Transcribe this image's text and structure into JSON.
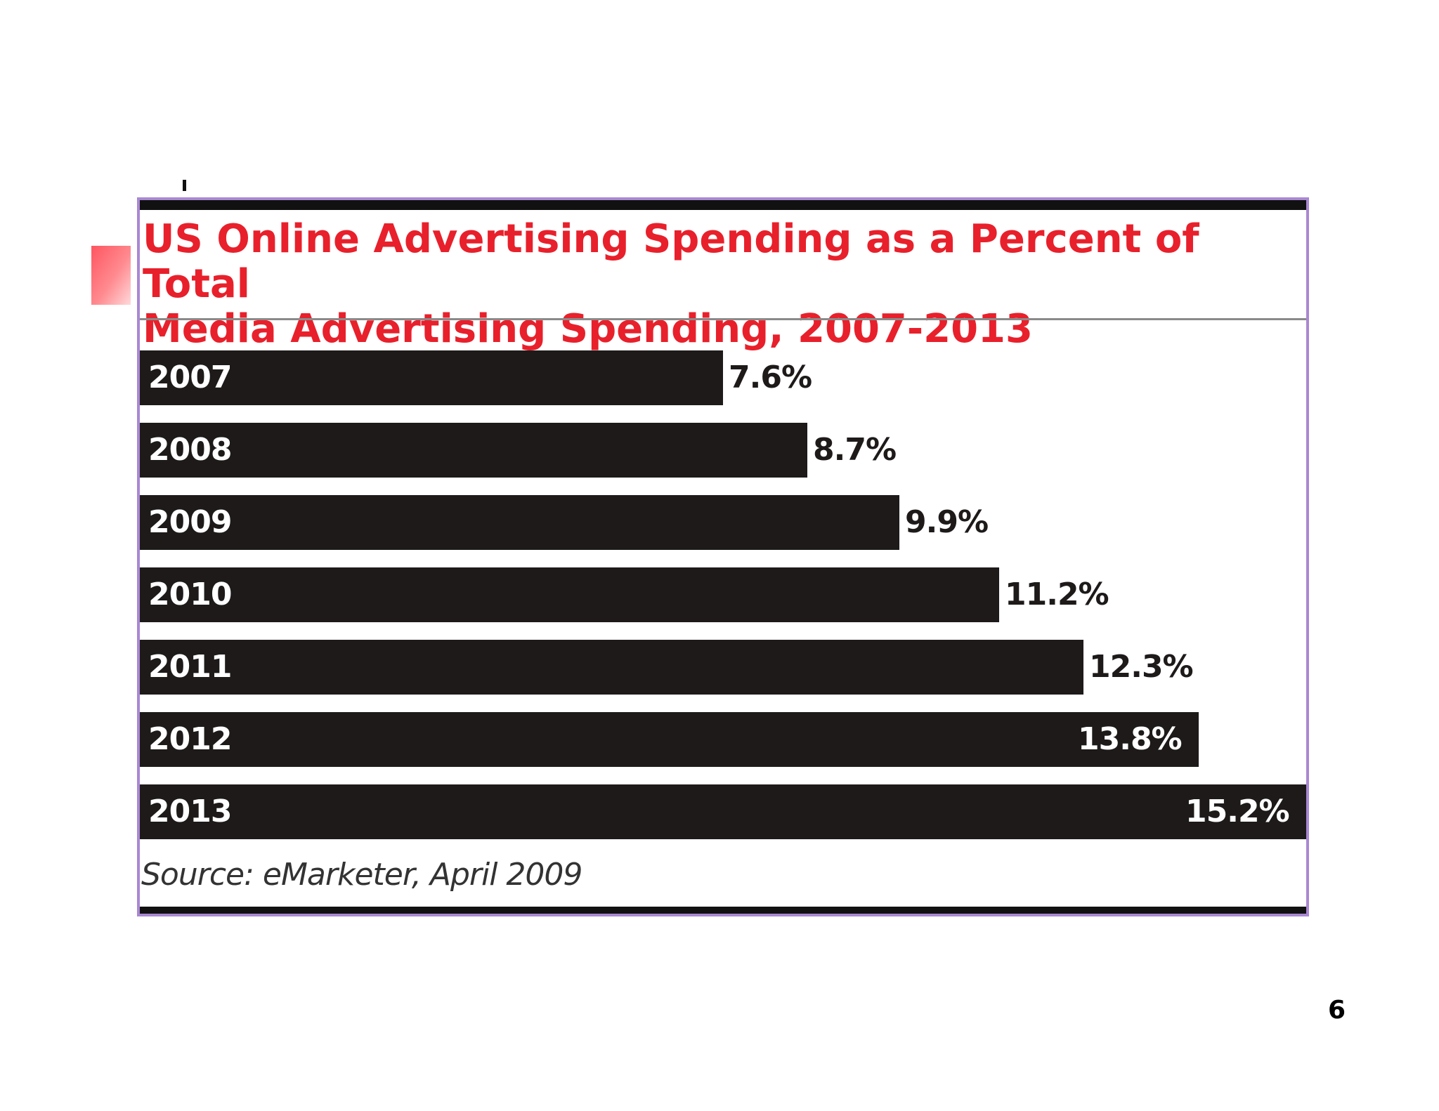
{
  "chart_data": {
    "type": "bar",
    "orientation": "horizontal",
    "title": "US Online Advertising Spending as a Percent of Total\nMedia Advertising Spending, 2007-2013",
    "categories": [
      "2007",
      "2008",
      "2009",
      "2010",
      "2011",
      "2012",
      "2013"
    ],
    "values": [
      7.6,
      8.7,
      9.9,
      11.2,
      12.3,
      13.8,
      15.2
    ],
    "value_labels": [
      "7.6%",
      "8.7%",
      "9.9%",
      "11.2%",
      "12.3%",
      "13.8%",
      "15.2%"
    ],
    "xlabel": "",
    "ylabel": "",
    "xlim": [
      0,
      15.2
    ],
    "grid": false,
    "source": "Source: eMarketer, April 2009"
  },
  "colors": {
    "title": "#e8202b",
    "bar": "#1e1a1a",
    "frame": "#a988d2",
    "bullet": "#ff5560"
  },
  "page": {
    "number": "6"
  }
}
